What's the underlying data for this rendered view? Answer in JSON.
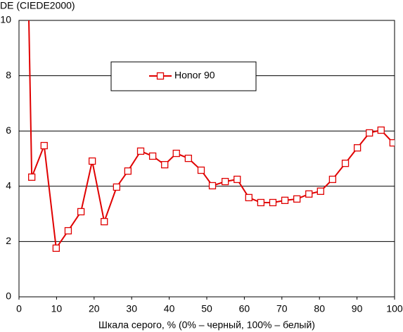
{
  "chart_data": {
    "type": "line",
    "y_label": "DE (CIEDE2000)",
    "x_label": "Шкала серого, % (0% – черный, 100% – белый)",
    "x": [
      2.6,
      3.4,
      6.7,
      9.9,
      13.1,
      16.5,
      19.5,
      22.7,
      26.0,
      29.0,
      32.4,
      35.6,
      38.8,
      41.9,
      45.1,
      48.5,
      51.5,
      54.9,
      58.1,
      61.2,
      64.4,
      67.6,
      70.8,
      74.0,
      77.2,
      80.3,
      83.5,
      86.9,
      90.1,
      93.3,
      96.4,
      99.6
    ],
    "series": [
      {
        "name": "Honor 90",
        "color": "#e00000",
        "values": [
          10.2,
          4.33,
          5.47,
          1.76,
          2.39,
          3.08,
          4.91,
          2.72,
          3.97,
          4.55,
          5.27,
          5.09,
          4.78,
          5.19,
          5.01,
          4.58,
          4.02,
          4.17,
          4.25,
          3.59,
          3.41,
          3.41,
          3.49,
          3.54,
          3.72,
          3.82,
          4.25,
          4.83,
          5.39,
          5.93,
          6.03,
          5.57
        ]
      }
    ],
    "xlim": [
      0,
      100
    ],
    "xticks": [
      0,
      10,
      20,
      30,
      40,
      50,
      60,
      70,
      80,
      90,
      100
    ],
    "ylim": [
      0,
      10
    ],
    "yticks": [
      0,
      2,
      4,
      6,
      8,
      10
    ],
    "grid": true
  }
}
